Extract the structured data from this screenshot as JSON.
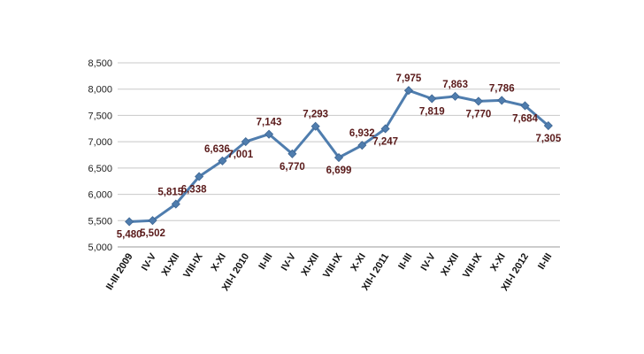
{
  "chart_data": {
    "type": "line",
    "title": "",
    "xlabel": "",
    "ylabel": "",
    "categories": [
      "II-III 2009",
      "IV-V",
      "XI-XII",
      "VIII-IX",
      "X-XI",
      "XII-I 2010",
      "II-III",
      "IV-V",
      "XI-XII",
      "VIII-IX",
      "X-XI",
      "XII-I 2011",
      "II-III",
      "IV-V",
      "XI-XII",
      "VIII-IX",
      "X-XI",
      "XII-I 2012",
      "II-III"
    ],
    "values": [
      5480,
      5502,
      5815,
      6338,
      6636,
      7001,
      7143,
      6770,
      7293,
      6699,
      6932,
      7247,
      7975,
      7819,
      7863,
      7770,
      7786,
      7684,
      7305
    ],
    "value_labels": [
      "5,480",
      "5,502",
      "5,815",
      "6,338",
      "6,636",
      "7,001",
      "7,143",
      "6,770",
      "7,293",
      "6,699",
      "6,932",
      "7,247",
      "7,975",
      "7,819",
      "7,863",
      "7,770",
      "7,786",
      "7,684",
      "7,305"
    ],
    "ylim": [
      5000,
      8500
    ],
    "y_ticks": [
      5000,
      5500,
      6000,
      6500,
      7000,
      7500,
      8000,
      8500
    ],
    "y_tick_labels": [
      "5,000",
      "5,500",
      "6,000",
      "6,500",
      "7,000",
      "7,500",
      "8,000",
      "8,500"
    ],
    "grid": true,
    "legend": "none",
    "colors": {
      "line": "#4f7dae",
      "marker": "#4f7dae",
      "grid": "#c8c8c8",
      "axis": "#999999",
      "label": "#5a1a1a"
    }
  }
}
